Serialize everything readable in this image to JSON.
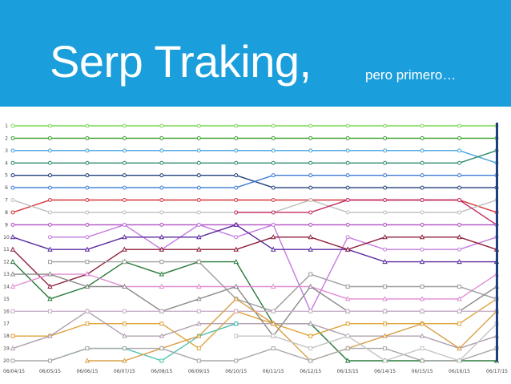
{
  "header": {
    "title": "Serp Traking,",
    "subtitle": "pero primero…",
    "background": "#1a9fdc",
    "text_color": "#ffffff"
  },
  "chart_data": {
    "type": "line",
    "title": "",
    "xlabel": "",
    "ylabel": "",
    "x": [
      "06/04/15",
      "06/05/15",
      "06/06/15",
      "06/07/15",
      "06/08/15",
      "06/09/15",
      "06/10/15",
      "06/11/15",
      "06/12/15",
      "06/13/15",
      "06/14/15",
      "06/15/15",
      "06/16/15",
      "06/17/15"
    ],
    "y_ticks": [
      "1",
      "2",
      "3",
      "4",
      "5",
      "6",
      "7",
      "8",
      "9",
      "10",
      "11",
      "12",
      "13",
      "14",
      "15",
      "16",
      "17",
      "18",
      "19",
      "20"
    ],
    "ylim": [
      1,
      20
    ],
    "y_inverted": true,
    "grid": false,
    "legend": "none",
    "series": [
      {
        "color": "#7ed957",
        "marker": "circle",
        "values": [
          1,
          1,
          1,
          1,
          1,
          1,
          1,
          1,
          1,
          1,
          1,
          1,
          1,
          1
        ]
      },
      {
        "color": "#3aa02f",
        "marker": "circle",
        "values": [
          2,
          2,
          2,
          2,
          2,
          2,
          2,
          2,
          2,
          2,
          2,
          2,
          2,
          2
        ]
      },
      {
        "color": "#45a3e0",
        "marker": "circle",
        "values": [
          3,
          3,
          3,
          3,
          3,
          3,
          3,
          3,
          3,
          3,
          3,
          3,
          3,
          4
        ]
      },
      {
        "color": "#2e8b6e",
        "marker": "circle",
        "values": [
          4,
          4,
          4,
          4,
          4,
          4,
          4,
          4,
          4,
          4,
          4,
          4,
          4,
          3
        ]
      },
      {
        "color": "#1f3f7a",
        "marker": "circle",
        "values": [
          5,
          5,
          5,
          5,
          5,
          5,
          5,
          6,
          6,
          6,
          6,
          6,
          6,
          6
        ]
      },
      {
        "color": "#3b7bd8",
        "marker": "circle",
        "values": [
          6,
          6,
          6,
          6,
          6,
          6,
          6,
          5,
          5,
          5,
          5,
          5,
          5,
          5
        ]
      },
      {
        "color": "#d4363b",
        "marker": "circle",
        "values": [
          8,
          7,
          7,
          7,
          7,
          7,
          7,
          7,
          7,
          7,
          7,
          7,
          7,
          8
        ]
      },
      {
        "color": "#bdbdbd",
        "marker": "circle",
        "values": [
          7,
          8,
          8,
          8,
          8,
          8,
          8,
          8,
          7,
          8,
          8,
          8,
          8,
          7
        ]
      },
      {
        "color": "#c42a62",
        "marker": "circle",
        "values": [
          null,
          null,
          null,
          null,
          null,
          null,
          8,
          8,
          8,
          7,
          7,
          7,
          7,
          9
        ]
      },
      {
        "color": "#b14fc4",
        "marker": "circle",
        "values": [
          9,
          9,
          9,
          9,
          9,
          9,
          9,
          9,
          9,
          9,
          9,
          9,
          9,
          9
        ]
      },
      {
        "color": "#c47ae0",
        "marker": "circle",
        "values": [
          null,
          10,
          10,
          9,
          11,
          9,
          10,
          9,
          16,
          10,
          11,
          11,
          11,
          10
        ]
      },
      {
        "color": "#5a2aa0",
        "marker": "triangle",
        "values": [
          10,
          11,
          11,
          10,
          10,
          10,
          9,
          11,
          11,
          11,
          12,
          12,
          12,
          12
        ]
      },
      {
        "color": "#8e1e3a",
        "marker": "triangle",
        "values": [
          11,
          14,
          13,
          11,
          11,
          11,
          11,
          10,
          10,
          11,
          10,
          10,
          10,
          11
        ]
      },
      {
        "color": "#2a7a3a",
        "marker": "triangle",
        "values": [
          12,
          15,
          14,
          12,
          13,
          12,
          12,
          17,
          17,
          20,
          20,
          20,
          20,
          20
        ]
      },
      {
        "color": "#e08cd4",
        "marker": "triangle",
        "values": [
          14,
          13,
          13,
          14,
          14,
          14,
          14,
          14,
          14,
          15,
          15,
          15,
          15,
          13
        ]
      },
      {
        "color": "#e0a33a",
        "marker": "square",
        "values": [
          18,
          18,
          17,
          17,
          17,
          19,
          16,
          17,
          18,
          17,
          17,
          17,
          17,
          15
        ]
      },
      {
        "color": "#9e9e9e",
        "marker": "square",
        "values": [
          null,
          12,
          12,
          12,
          12,
          12,
          15,
          16,
          13,
          14,
          14,
          14,
          14,
          15
        ]
      },
      {
        "color": "#8a8a8a",
        "marker": "triangle",
        "values": [
          13,
          13,
          14,
          14,
          16,
          15,
          14,
          18,
          14,
          16,
          16,
          16,
          16,
          14
        ]
      },
      {
        "color": "#b0a0b0",
        "marker": "triangle",
        "values": [
          19,
          18,
          16,
          18,
          18,
          17,
          17,
          17,
          17,
          18,
          18,
          18,
          19,
          18
        ]
      },
      {
        "color": "#c9b0c9",
        "marker": "square",
        "values": [
          16,
          16,
          16,
          16,
          16,
          16,
          16,
          16,
          16,
          16,
          16,
          16,
          16,
          16
        ]
      },
      {
        "color": "#4dc2b0",
        "marker": "square",
        "values": [
          null,
          20,
          19,
          19,
          20,
          18,
          17,
          null,
          null,
          null,
          null,
          null,
          null,
          null
        ]
      },
      {
        "color": "#d9a04a",
        "marker": "triangle",
        "values": [
          null,
          null,
          20,
          20,
          19,
          18,
          15,
          17,
          20,
          19,
          18,
          17,
          19,
          16
        ]
      },
      {
        "color": "#a8a8a8",
        "marker": "square",
        "values": [
          20,
          20,
          19,
          19,
          19,
          20,
          20,
          19,
          20,
          19,
          19,
          20,
          20,
          19
        ]
      },
      {
        "color": "#c4c4c4",
        "marker": "square",
        "values": [
          null,
          null,
          null,
          null,
          null,
          null,
          18,
          18,
          19,
          18,
          20,
          19,
          20,
          17
        ]
      }
    ]
  }
}
